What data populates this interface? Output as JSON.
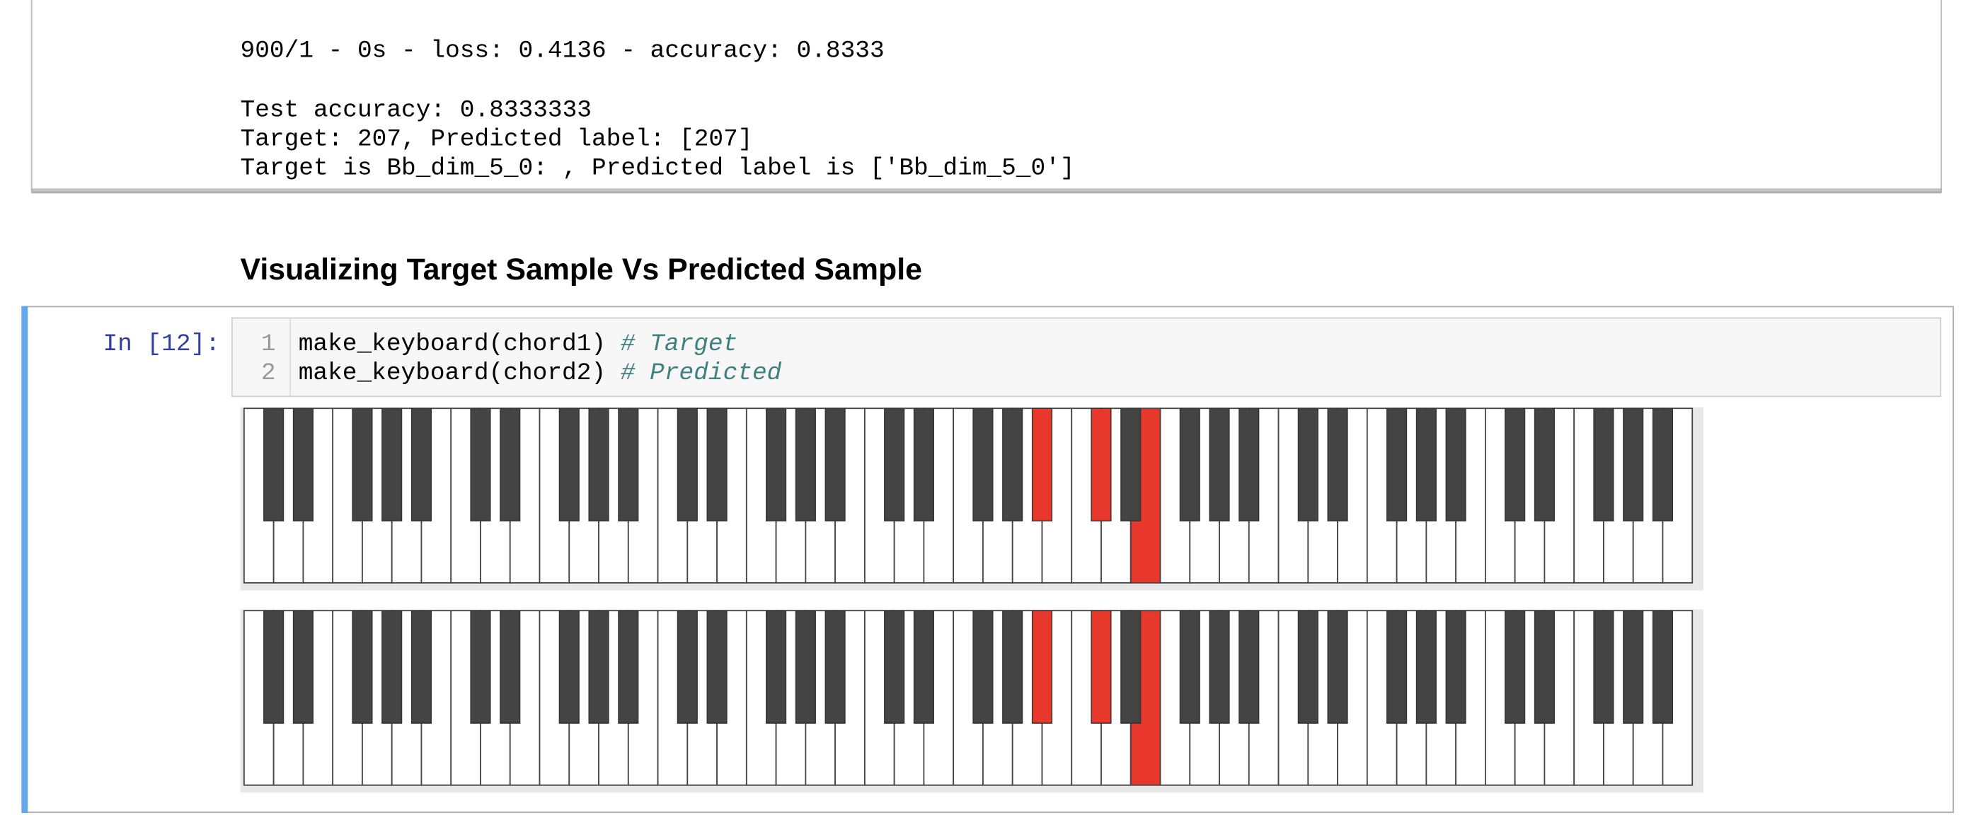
{
  "output": {
    "lines": [
      "900/1 - 0s - loss: 0.4136 - accuracy: 0.8333",
      "Test accuracy: 0.8333333",
      "Target: 207, Predicted label: [207]",
      "Target is Bb_dim_5_0: , Predicted label is ['Bb_dim_5_0']"
    ]
  },
  "heading": "Visualizing Target Sample Vs Predicted Sample",
  "cell": {
    "prompt": "In [12]:",
    "code": [
      {
        "number": "1",
        "code": "make_keyboard(chord1)",
        "comment": "# Target"
      },
      {
        "number": "2",
        "code": "make_keyboard(chord2)",
        "comment": "# Predicted"
      }
    ]
  }
}
